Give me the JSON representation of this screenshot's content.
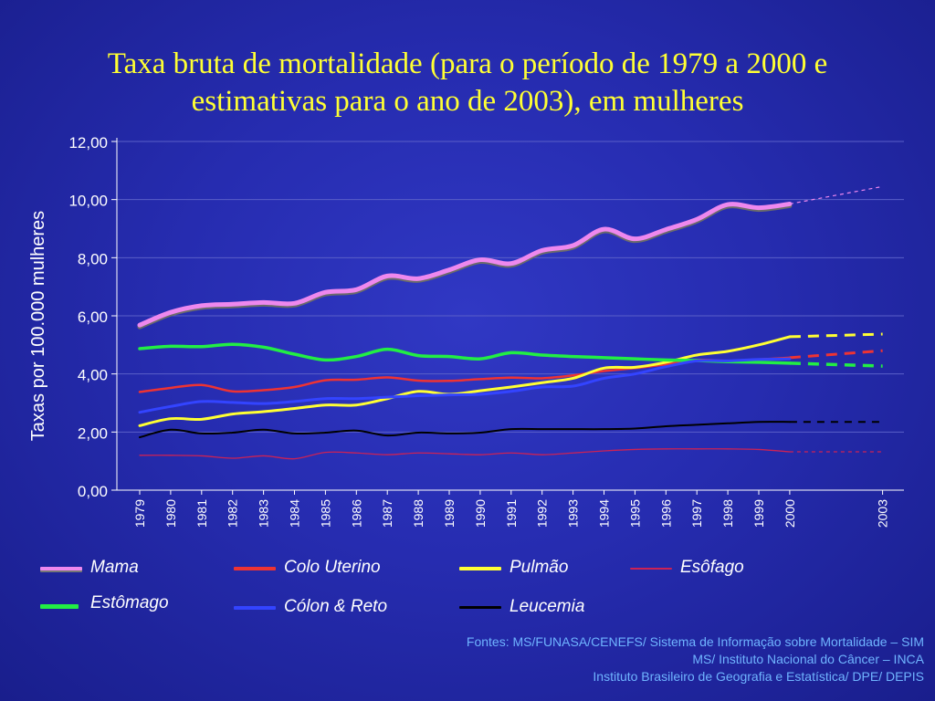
{
  "title": {
    "line1": "Taxa bruta de mortalidade (para o período de 1979 a 2000 e",
    "line2": "estimativas para o ano de 2003), em mulheres"
  },
  "colors": {
    "title": "#ffff33",
    "background": "#262cb0",
    "sources": "#6fb4ff"
  },
  "chart_data": {
    "type": "line",
    "title": "Taxa bruta de mortalidade (para o período de 1979 a 2000 e estimativas para o ano de 2003), em mulheres",
    "xlabel": "",
    "ylabel": "Taxas por 100.000 mulheres",
    "ylim": [
      0,
      12
    ],
    "yticks": [
      "0,00",
      "2,00",
      "4,00",
      "6,00",
      "8,00",
      "10,00",
      "12,00"
    ],
    "x": [
      "1979",
      "1980",
      "1981",
      "1982",
      "1983",
      "1984",
      "1985",
      "1986",
      "1987",
      "1988",
      "1989",
      "1990",
      "1991",
      "1992",
      "1993",
      "1994",
      "1995",
      "1996",
      "1997",
      "1998",
      "1999",
      "2000"
    ],
    "xtick_labels": [
      "1979",
      "1980",
      "1981",
      "1982",
      "1983",
      "1984",
      "1985",
      "1986",
      "1987",
      "1988",
      "1989",
      "1990",
      "1991",
      "1992",
      "1993",
      "1994",
      "1995",
      "1996",
      "1997",
      "1998",
      "1999",
      "2000",
      "2003"
    ],
    "estimate_year": "2003",
    "grid": "horizontal",
    "legend_position": "bottom",
    "series": [
      {
        "name": "Mama",
        "color": "#ee88ee",
        "values": [
          5.68,
          6.12,
          6.35,
          6.4,
          6.46,
          6.43,
          6.81,
          6.9,
          7.37,
          7.28,
          7.58,
          7.93,
          7.8,
          8.25,
          8.42,
          8.98,
          8.65,
          8.97,
          9.32,
          9.83,
          9.72,
          9.85
        ],
        "estimate_2003": 10.45
      },
      {
        "name": "Colo Uterino",
        "color": "#ee3333",
        "values": [
          3.38,
          3.52,
          3.62,
          3.4,
          3.44,
          3.55,
          3.78,
          3.8,
          3.88,
          3.77,
          3.76,
          3.82,
          3.87,
          3.85,
          3.95,
          4.1,
          4.2,
          4.33,
          4.48,
          4.45,
          4.5,
          4.56
        ],
        "estimate_2003": 4.8
      },
      {
        "name": "Pulmão",
        "color": "#ffff33",
        "values": [
          2.22,
          2.46,
          2.44,
          2.62,
          2.7,
          2.81,
          2.93,
          2.93,
          3.15,
          3.4,
          3.3,
          3.42,
          3.55,
          3.7,
          3.85,
          4.2,
          4.23,
          4.4,
          4.65,
          4.78,
          5.0,
          5.28
        ],
        "estimate_2003": 5.37
      },
      {
        "name": "Esôfago",
        "color": "#cc2255",
        "values": [
          1.2,
          1.2,
          1.18,
          1.1,
          1.18,
          1.08,
          1.3,
          1.28,
          1.22,
          1.28,
          1.25,
          1.22,
          1.28,
          1.22,
          1.28,
          1.35,
          1.4,
          1.42,
          1.42,
          1.42,
          1.4,
          1.32
        ],
        "estimate_2003": 1.32
      },
      {
        "name": "Estômago",
        "color": "#22ee44",
        "values": [
          4.87,
          4.95,
          4.94,
          5.02,
          4.92,
          4.68,
          4.48,
          4.6,
          4.85,
          4.63,
          4.6,
          4.52,
          4.73,
          4.65,
          4.6,
          4.56,
          4.52,
          4.48,
          4.46,
          4.42,
          4.4,
          4.37
        ],
        "estimate_2003": 4.27
      },
      {
        "name": "Cólon & Reto",
        "color": "#3344ff",
        "values": [
          2.68,
          2.88,
          3.05,
          3.02,
          2.98,
          3.05,
          3.15,
          3.15,
          3.2,
          3.25,
          3.28,
          3.3,
          3.4,
          3.55,
          3.58,
          3.85,
          4.0,
          4.25,
          4.45,
          4.45,
          4.5,
          4.52
        ],
        "estimate_2003": 4.78
      },
      {
        "name": "Leucemia",
        "color": "#000000",
        "values": [
          1.82,
          2.08,
          1.95,
          1.98,
          2.08,
          1.95,
          1.98,
          2.05,
          1.88,
          1.98,
          1.95,
          1.98,
          2.1,
          2.1,
          2.1,
          2.1,
          2.12,
          2.2,
          2.25,
          2.3,
          2.35,
          2.35
        ],
        "estimate_2003": 2.35
      }
    ]
  },
  "legend": [
    {
      "label": "Mama",
      "color": "#ee88ee"
    },
    {
      "label": "Colo Uterino",
      "color": "#ee3333"
    },
    {
      "label": "Pulmão",
      "color": "#ffff33"
    },
    {
      "label": "Esôfago",
      "color": "#cc2255"
    },
    {
      "label": "Estômago",
      "color": "#22ee44"
    },
    {
      "label": "Cólon & Reto",
      "color": "#3344ff"
    },
    {
      "label": "Leucemia",
      "color": "#000000"
    }
  ],
  "sources": {
    "line1": "Fontes: MS/FUNASA/CENEFS/ Sistema de Informação sobre Mortalidade – SIM",
    "line2": "MS/ Instituto Nacional do Câncer – INCA",
    "line3": "Instituto Brasileiro de Geografia e Estatística/ DPE/ DEPIS"
  }
}
